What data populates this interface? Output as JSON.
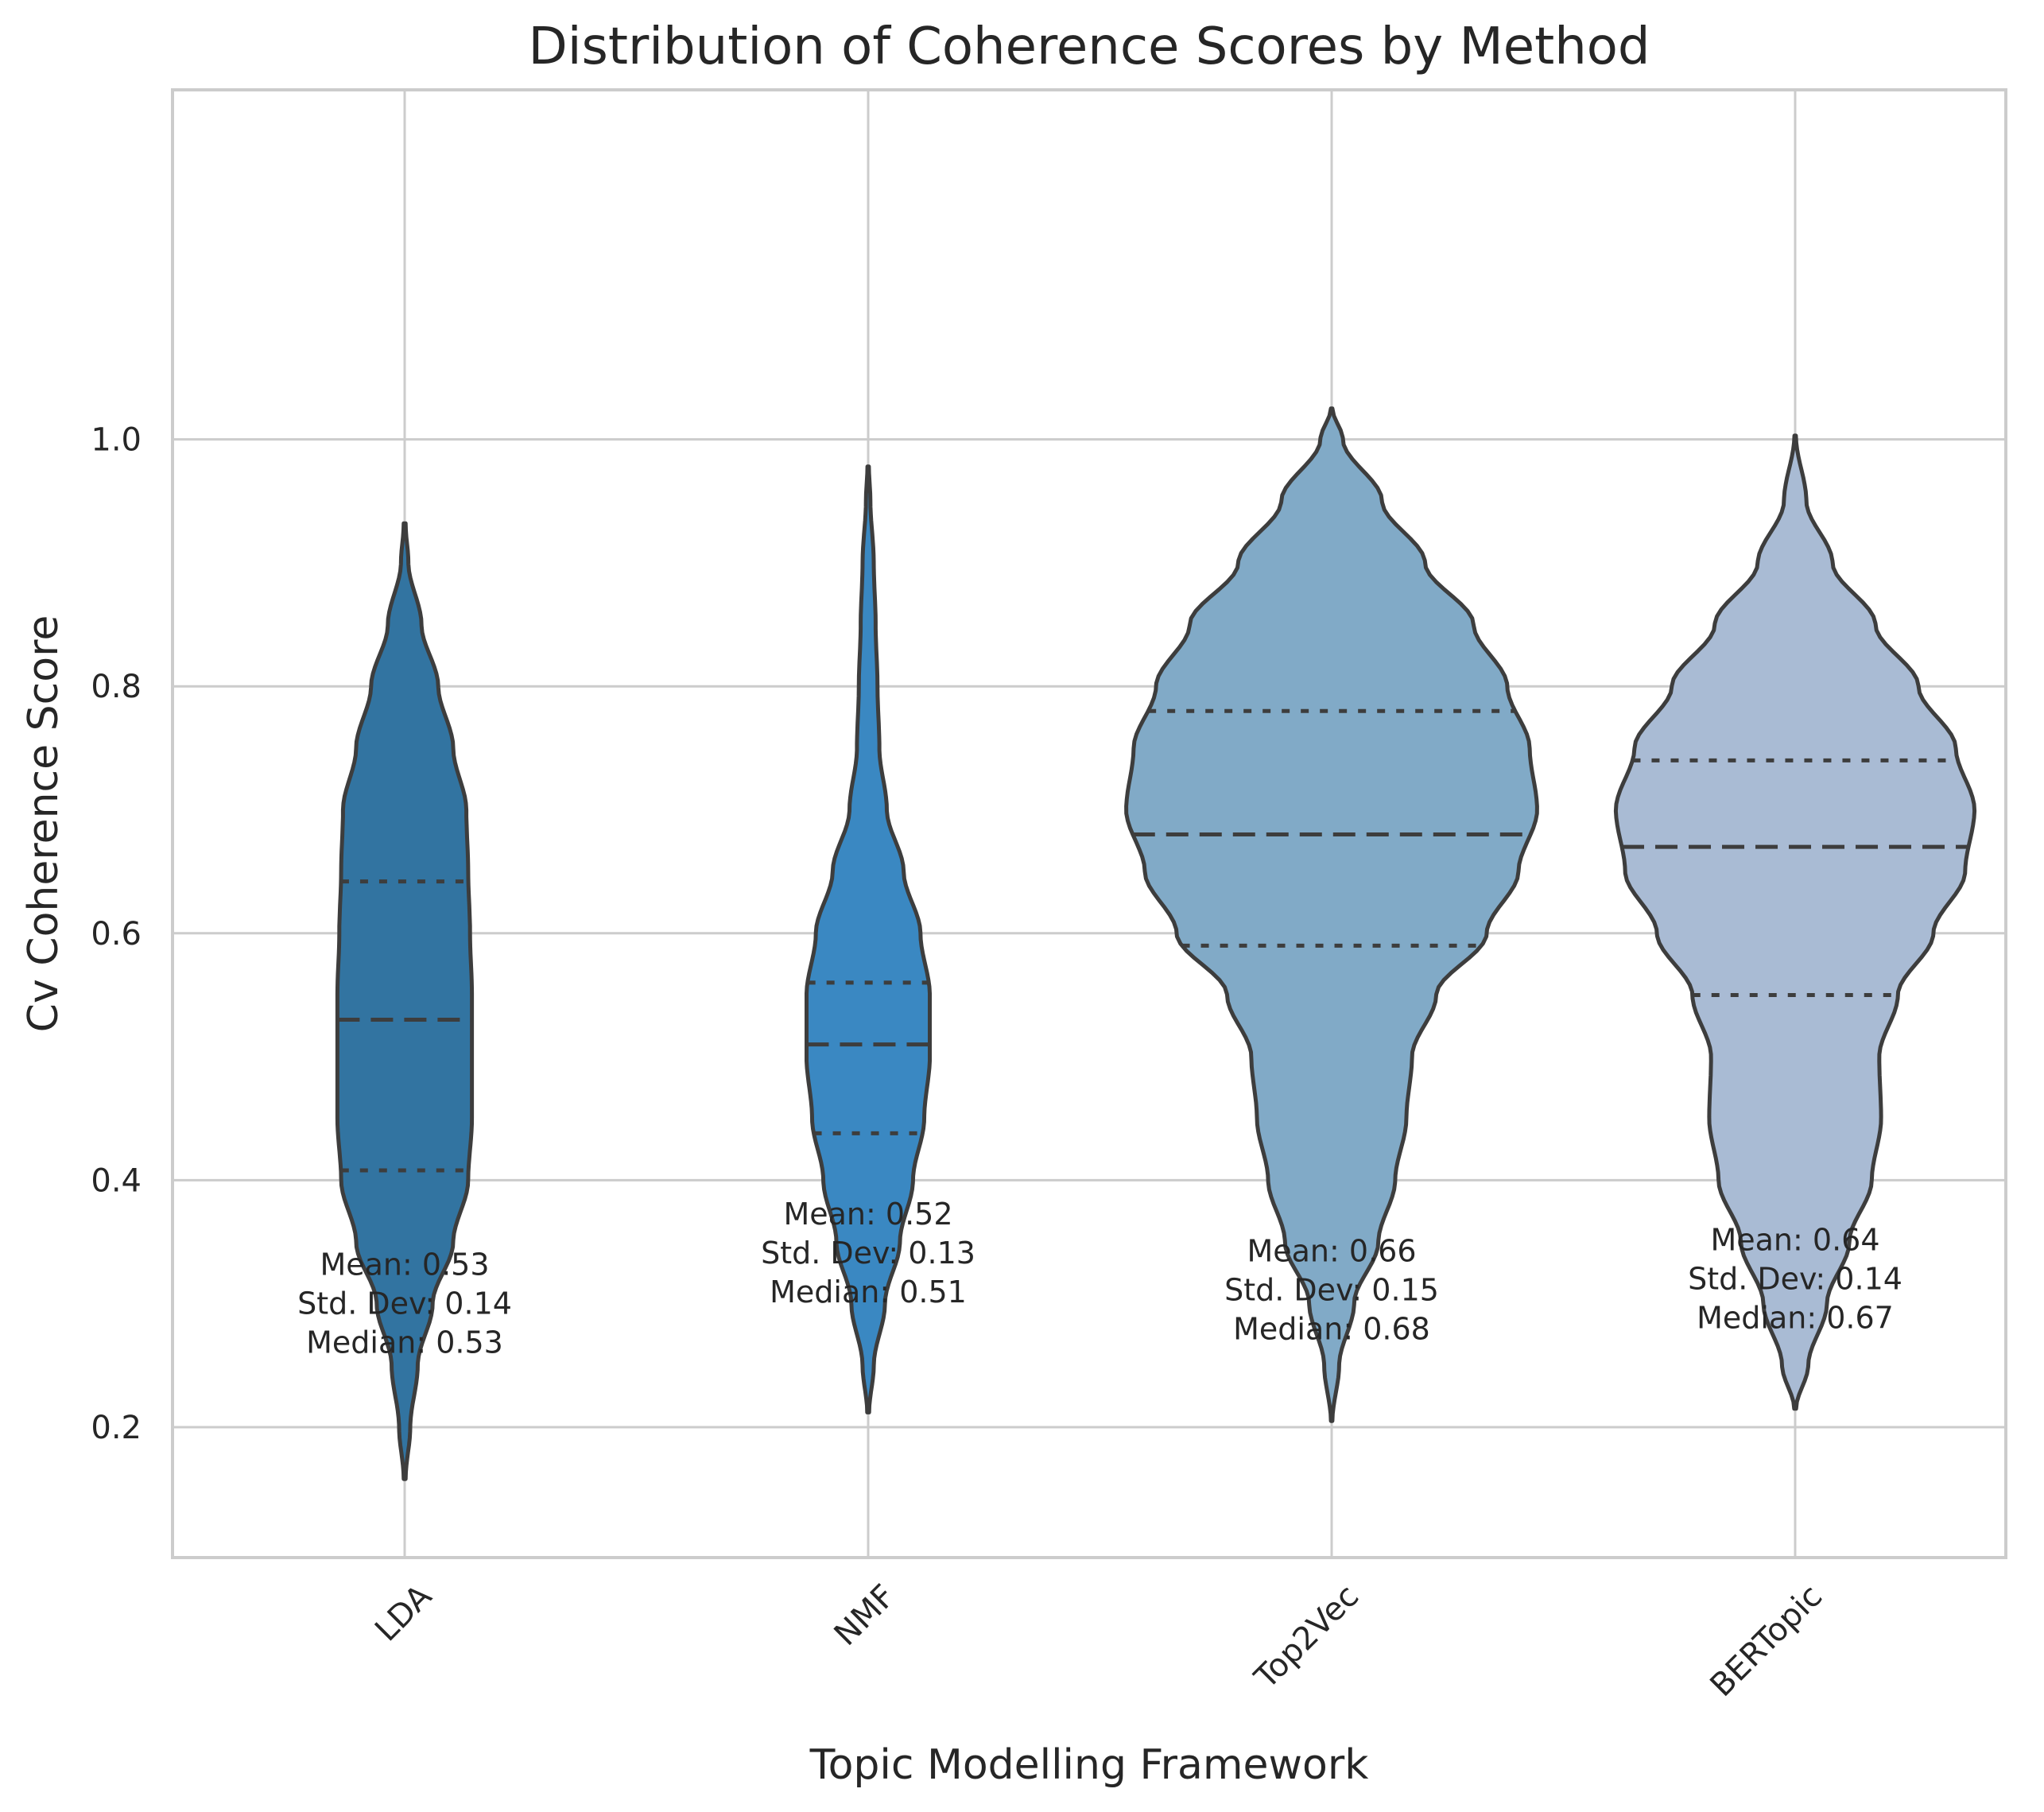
{
  "chart_data": {
    "type": "violin",
    "title": "Distribution of Coherence Scores by Method",
    "xlabel": "Topic Modelling Framework",
    "ylabel": "Cv Coherence Score",
    "ylim": [
      0.113,
      1.068
    ],
    "yticks": [
      0.2,
      0.4,
      0.6,
      0.8,
      1.0
    ],
    "ytick_labels": [
      "0.2",
      "0.4",
      "0.6",
      "0.8",
      "1.0"
    ],
    "grid": true,
    "inner": "quartile",
    "categories": [
      "LDA",
      "NMF",
      "Top2Vec",
      "BERTopic"
    ],
    "series": [
      {
        "category": "LDA",
        "color": "#3274a1",
        "range": [
          0.158,
          0.932
        ],
        "quartiles": [
          0.408,
          0.53,
          0.642
        ],
        "profile": [
          [
            0.158,
            0.005
          ],
          [
            0.2,
            0.03
          ],
          [
            0.25,
            0.07
          ],
          [
            0.3,
            0.15
          ],
          [
            0.35,
            0.26
          ],
          [
            0.4,
            0.34
          ],
          [
            0.45,
            0.36
          ],
          [
            0.5,
            0.36
          ],
          [
            0.55,
            0.36
          ],
          [
            0.6,
            0.35
          ],
          [
            0.65,
            0.34
          ],
          [
            0.7,
            0.33
          ],
          [
            0.75,
            0.26
          ],
          [
            0.8,
            0.18
          ],
          [
            0.85,
            0.09
          ],
          [
            0.9,
            0.02
          ],
          [
            0.932,
            0.005
          ]
        ],
        "annotation": [
          "Mean: 0.53",
          "Std. Dev: 0.14",
          "Median: 0.53"
        ],
        "annotation_y": 0.3
      },
      {
        "category": "NMF",
        "color": "#3a88c2",
        "range": [
          0.212,
          0.978
        ],
        "quartiles": [
          0.438,
          0.51,
          0.56
        ],
        "profile": [
          [
            0.212,
            0.005
          ],
          [
            0.25,
            0.03
          ],
          [
            0.3,
            0.09
          ],
          [
            0.35,
            0.17
          ],
          [
            0.4,
            0.24
          ],
          [
            0.45,
            0.3
          ],
          [
            0.5,
            0.33
          ],
          [
            0.55,
            0.33
          ],
          [
            0.6,
            0.28
          ],
          [
            0.65,
            0.19
          ],
          [
            0.7,
            0.1
          ],
          [
            0.75,
            0.06
          ],
          [
            0.8,
            0.05
          ],
          [
            0.85,
            0.04
          ],
          [
            0.9,
            0.03
          ],
          [
            0.95,
            0.012
          ],
          [
            0.978,
            0.004
          ]
        ],
        "annotation": [
          "Mean: 0.52",
          "Std. Dev: 0.13",
          "Median: 0.51"
        ],
        "annotation_y": 0.341
      },
      {
        "category": "Top2Vec",
        "color": "#81aac7",
        "range": [
          0.205,
          1.025
        ],
        "quartiles": [
          0.59,
          0.68,
          0.78
        ],
        "profile": [
          [
            0.205,
            0.004
          ],
          [
            0.25,
            0.04
          ],
          [
            0.3,
            0.12
          ],
          [
            0.35,
            0.25
          ],
          [
            0.4,
            0.34
          ],
          [
            0.45,
            0.4
          ],
          [
            0.5,
            0.43
          ],
          [
            0.55,
            0.56
          ],
          [
            0.6,
            0.83
          ],
          [
            0.65,
            1.0
          ],
          [
            0.7,
            1.1
          ],
          [
            0.75,
            1.06
          ],
          [
            0.8,
            0.94
          ],
          [
            0.85,
            0.76
          ],
          [
            0.9,
            0.5
          ],
          [
            0.95,
            0.27
          ],
          [
            1.0,
            0.06
          ],
          [
            1.025,
            0.004
          ]
        ],
        "annotation": [
          "Mean: 0.66",
          "Std. Dev: 0.15",
          "Median: 0.68"
        ],
        "annotation_y": 0.311
      },
      {
        "category": "BERTopic",
        "color": "#a9bbd4",
        "range": [
          0.215,
          1.003
        ],
        "quartiles": [
          0.55,
          0.67,
          0.74
        ],
        "profile": [
          [
            0.215,
            0.005
          ],
          [
            0.25,
            0.07
          ],
          [
            0.3,
            0.17
          ],
          [
            0.35,
            0.29
          ],
          [
            0.4,
            0.41
          ],
          [
            0.45,
            0.46
          ],
          [
            0.5,
            0.45
          ],
          [
            0.55,
            0.55
          ],
          [
            0.6,
            0.74
          ],
          [
            0.65,
            0.91
          ],
          [
            0.7,
            0.96
          ],
          [
            0.75,
            0.86
          ],
          [
            0.8,
            0.66
          ],
          [
            0.85,
            0.43
          ],
          [
            0.9,
            0.2
          ],
          [
            0.95,
            0.06
          ],
          [
            1.003,
            0.004
          ]
        ],
        "annotation": [
          "Mean: 0.64",
          "Std. Dev: 0.14",
          "Median: 0.67"
        ],
        "annotation_y": 0.32
      }
    ]
  }
}
